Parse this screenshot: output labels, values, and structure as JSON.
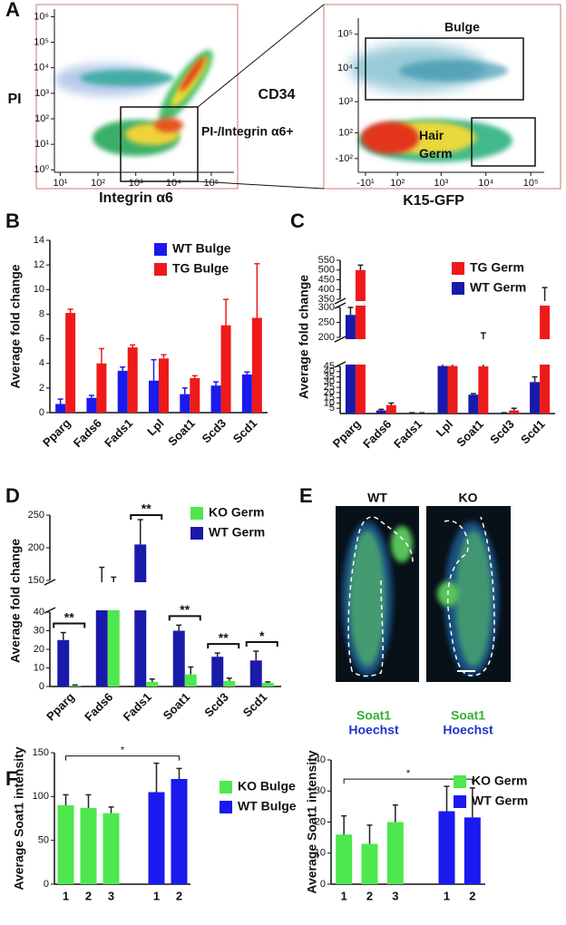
{
  "figure": {
    "panel_labels": [
      "A",
      "B",
      "C",
      "D",
      "E",
      "F"
    ],
    "panel_e": {
      "columns": [
        "WT",
        "KO"
      ],
      "stains": [
        [
          "Soat1",
          "Hoechst"
        ],
        [
          "Soat1",
          "Hoechst"
        ]
      ]
    }
  },
  "chart_data": [
    {
      "type": "density",
      "xlabel": "Integrin α6",
      "ylabel": "PI",
      "scale": "log",
      "xlim": [
        7,
        400000
      ],
      "xticks": [
        {
          "value": 10,
          "label": "10¹"
        },
        {
          "value": 100,
          "label": "10²"
        },
        {
          "value": 1000,
          "label": "10³"
        },
        {
          "value": 10000,
          "label": "10⁴"
        },
        {
          "value": 100000,
          "label": "10⁵"
        }
      ],
      "ylim": [
        0.8,
        2000000
      ],
      "yticks": [
        {
          "value": 1,
          "label": "10⁰"
        },
        {
          "value": 10,
          "label": "10¹"
        },
        {
          "value": 100,
          "label": "10²"
        },
        {
          "value": 1000,
          "label": "10³"
        },
        {
          "value": 10000,
          "label": "10⁴"
        },
        {
          "value": 100000,
          "label": "10⁵"
        },
        {
          "value": 1000000,
          "label": "10⁶"
        }
      ],
      "gate_labels": [
        "PI-/Integrin α6+"
      ]
    },
    {
      "type": "density",
      "xlabel": "K15-GFP",
      "ylabel": "CD34",
      "scale": "biexponential",
      "xlim": [
        -30,
        200000
      ],
      "xticks": [
        {
          "value": -10,
          "label": "-10¹"
        },
        {
          "value": 100,
          "label": "10²"
        },
        {
          "value": 1000,
          "label": "10³"
        },
        {
          "value": 10000,
          "label": "10⁴"
        },
        {
          "value": 100000,
          "label": "10⁵"
        }
      ],
      "ylim": [
        -300,
        300000
      ],
      "yticks": [
        {
          "value": -100,
          "label": "-10²"
        },
        {
          "value": 100,
          "label": "10²"
        },
        {
          "value": 1000,
          "label": "10³"
        },
        {
          "value": 10000,
          "label": "10⁴"
        },
        {
          "value": 100000,
          "label": "10⁵"
        }
      ],
      "gate_labels": [
        "Bulge",
        "Hair Germ"
      ]
    },
    {
      "type": "bar",
      "ylabel": "Average fold change",
      "categories": [
        "Pparg",
        "Fads6",
        "Fads1",
        "Lpl",
        "Soat1",
        "Scd3",
        "Scd1"
      ],
      "series": [
        {
          "name": "WT Bulge",
          "color": "#1a1aee",
          "values": [
            0.7,
            1.2,
            3.4,
            2.6,
            1.5,
            2.2,
            3.1
          ],
          "errors": [
            0.4,
            0.2,
            0.3,
            1.7,
            0.5,
            0.3,
            0.2
          ]
        },
        {
          "name": "TG Bulge",
          "color": "#ee1a1a",
          "values": [
            8.1,
            4.0,
            5.3,
            4.4,
            2.8,
            7.1,
            7.7
          ],
          "errors": [
            0.3,
            1.2,
            0.2,
            0.3,
            0.2,
            2.1,
            4.4
          ]
        }
      ],
      "ylim": [
        0,
        14
      ],
      "yticks": [
        0,
        2,
        4,
        6,
        8,
        10,
        12,
        14
      ],
      "legend": "upper right"
    },
    {
      "type": "bar",
      "ylabel": "Average fold change",
      "categories": [
        "Pparg",
        "Fads6",
        "Fads1",
        "Lpl",
        "Soat1",
        "Scd3",
        "Scd1"
      ],
      "series": [
        {
          "name": "TG Germ",
          "color": "#ee1a1a",
          "values": [
            500,
            8,
            0.5,
            47,
            45,
            3,
            320
          ],
          "errors": [
            25,
            2,
            0.2,
            80,
            170,
            2,
            90
          ]
        },
        {
          "name": "WT Germ",
          "color": "#1a1aaa",
          "values": [
            275,
            3,
            0.5,
            47,
            18,
            0.5,
            30
          ],
          "errors": [
            25,
            1,
            0.3,
            40,
            1,
            0.3,
            5
          ]
        }
      ],
      "y_segments": [
        {
          "ylim": [
            0,
            45
          ],
          "yticks": [
            5,
            10,
            15,
            20,
            25,
            30,
            35,
            40,
            45
          ]
        },
        {
          "ylim": [
            200,
            300
          ],
          "yticks": [
            200,
            250,
            300
          ]
        },
        {
          "ylim": [
            350,
            550
          ],
          "yticks": [
            350,
            400,
            450,
            500,
            550
          ]
        }
      ],
      "legend": "upper right"
    },
    {
      "type": "bar",
      "ylabel": "Average fold change",
      "categories": [
        "Pparg",
        "Fads6",
        "Fads1",
        "Soat1",
        "Scd3",
        "Scd1"
      ],
      "series": [
        {
          "name": "KO Germ",
          "color": "#4ee84e",
          "values": [
            0.5,
            110,
            2.5,
            6.5,
            3,
            2
          ],
          "errors": [
            0.3,
            45,
            1.5,
            4,
            1.5,
            0.5
          ]
        },
        {
          "name": "WT Germ",
          "color": "#1a1aaa",
          "values": [
            25,
            120,
            205,
            30,
            16,
            14
          ],
          "errors": [
            4,
            50,
            38,
            3,
            2,
            5
          ]
        }
      ],
      "y_segments": [
        {
          "ylim": [
            0,
            40
          ],
          "yticks": [
            0,
            10,
            20,
            30,
            40
          ]
        },
        {
          "ylim": [
            150,
            250
          ],
          "yticks": [
            150,
            200,
            250
          ]
        }
      ],
      "significance": [
        "**",
        null,
        "**",
        "**",
        "**",
        "*"
      ],
      "legend": "upper right"
    },
    {
      "type": "bar",
      "ylabel": "Average Soat1 intensity",
      "categories": [
        "1",
        "2",
        "3",
        null,
        "1",
        "2"
      ],
      "series": [
        {
          "name": "KO Bulge",
          "color": "#4ee84e",
          "values": [
            90,
            87,
            81,
            null,
            null,
            null
          ],
          "errors": [
            12,
            15,
            7,
            null,
            null,
            null
          ]
        },
        {
          "name": "WT Bulge",
          "color": "#1a1aee",
          "values": [
            null,
            null,
            null,
            null,
            105,
            120
          ],
          "errors": [
            null,
            null,
            null,
            null,
            33,
            12
          ]
        }
      ],
      "ylim": [
        0,
        150
      ],
      "yticks": [
        0,
        50,
        100,
        150
      ],
      "significance_bracket": "*",
      "legend": "right"
    },
    {
      "type": "bar",
      "ylabel": "Average Soat1 intensity",
      "categories": [
        "1",
        "2",
        "3",
        null,
        "1",
        "2"
      ],
      "series": [
        {
          "name": "KO Germ",
          "color": "#4ee84e",
          "values": [
            16,
            13,
            20,
            null,
            null,
            null
          ],
          "errors": [
            6,
            6,
            5.5,
            null,
            null,
            null
          ]
        },
        {
          "name": "WT Germ",
          "color": "#1a1aee",
          "values": [
            null,
            null,
            null,
            null,
            23.5,
            21.5
          ],
          "errors": [
            null,
            null,
            null,
            null,
            8,
            9.5
          ]
        }
      ],
      "ylim": [
        0,
        40
      ],
      "yticks": [
        0,
        10,
        20,
        30,
        40
      ],
      "significance_bracket": "*",
      "legend": "upper right"
    }
  ]
}
